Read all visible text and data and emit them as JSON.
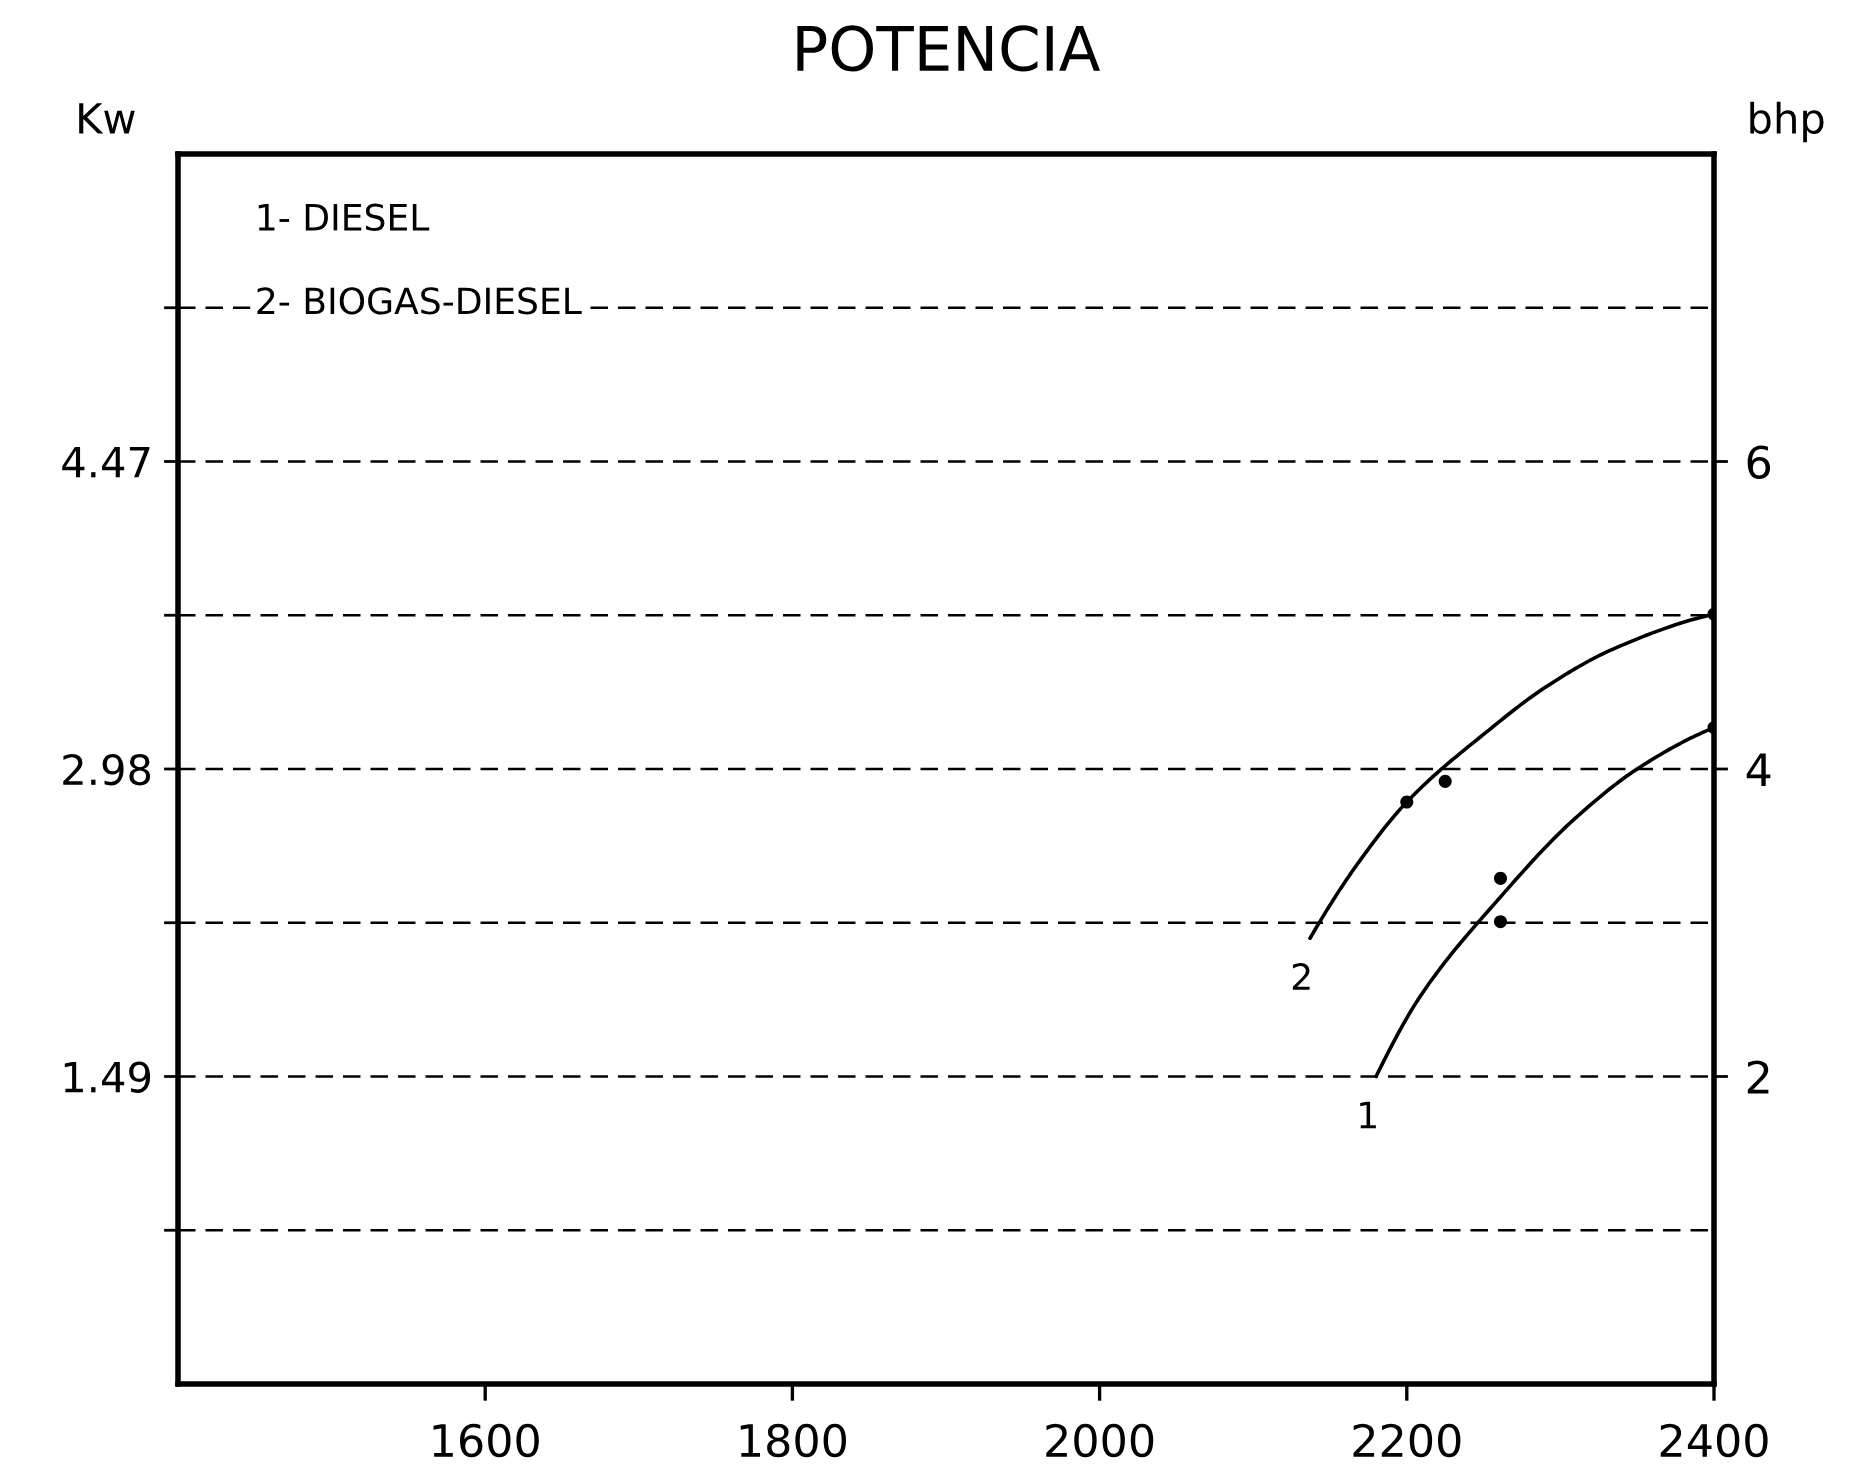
{
  "chart_data": {
    "type": "line",
    "title": "POTENCIA",
    "ylabel": "Kw",
    "y2label": "bhp",
    "annotations": [
      "1- DIESEL",
      "2- BIOGAS-DIESEL"
    ],
    "xlim": [
      1400,
      2400
    ],
    "xticks": [
      1600,
      1800,
      2000,
      2200,
      2400
    ],
    "ylim": [
      0,
      5.96
    ],
    "yticks": [
      {
        "value": 0.745,
        "label": null
      },
      1.49,
      {
        "value": 2.235,
        "label": null
      },
      2.98,
      {
        "value": 3.725,
        "label": null
      },
      4.47,
      {
        "value": 5.215,
        "label": null
      }
    ],
    "y2lim": [
      0,
      8
    ],
    "y2ticks": [
      2,
      4,
      6
    ],
    "grid": "y",
    "series": [
      {
        "name": "1",
        "color": "#000000",
        "x": [
          2180,
          2208,
          2261,
          2308,
          2352,
          2400
        ],
        "values": [
          1.49,
          1.87,
          2.36,
          2.73,
          2.99,
          3.18
        ]
      },
      {
        "name": "2",
        "color": "#000000",
        "x": [
          2137,
          2166,
          2200,
          2252,
          2291,
          2334,
          2400
        ],
        "values": [
          2.16,
          2.5,
          2.82,
          3.16,
          3.38,
          3.56,
          3.73
        ]
      },
      {
        "type": "scatter",
        "color": "#000000",
        "marker": "circle",
        "x": [
          2200,
          2225,
          2261,
          2261,
          2400,
          2400
        ],
        "values": [
          2.82,
          2.92,
          2.45,
          2.24,
          3.73,
          3.18
        ]
      }
    ]
  }
}
